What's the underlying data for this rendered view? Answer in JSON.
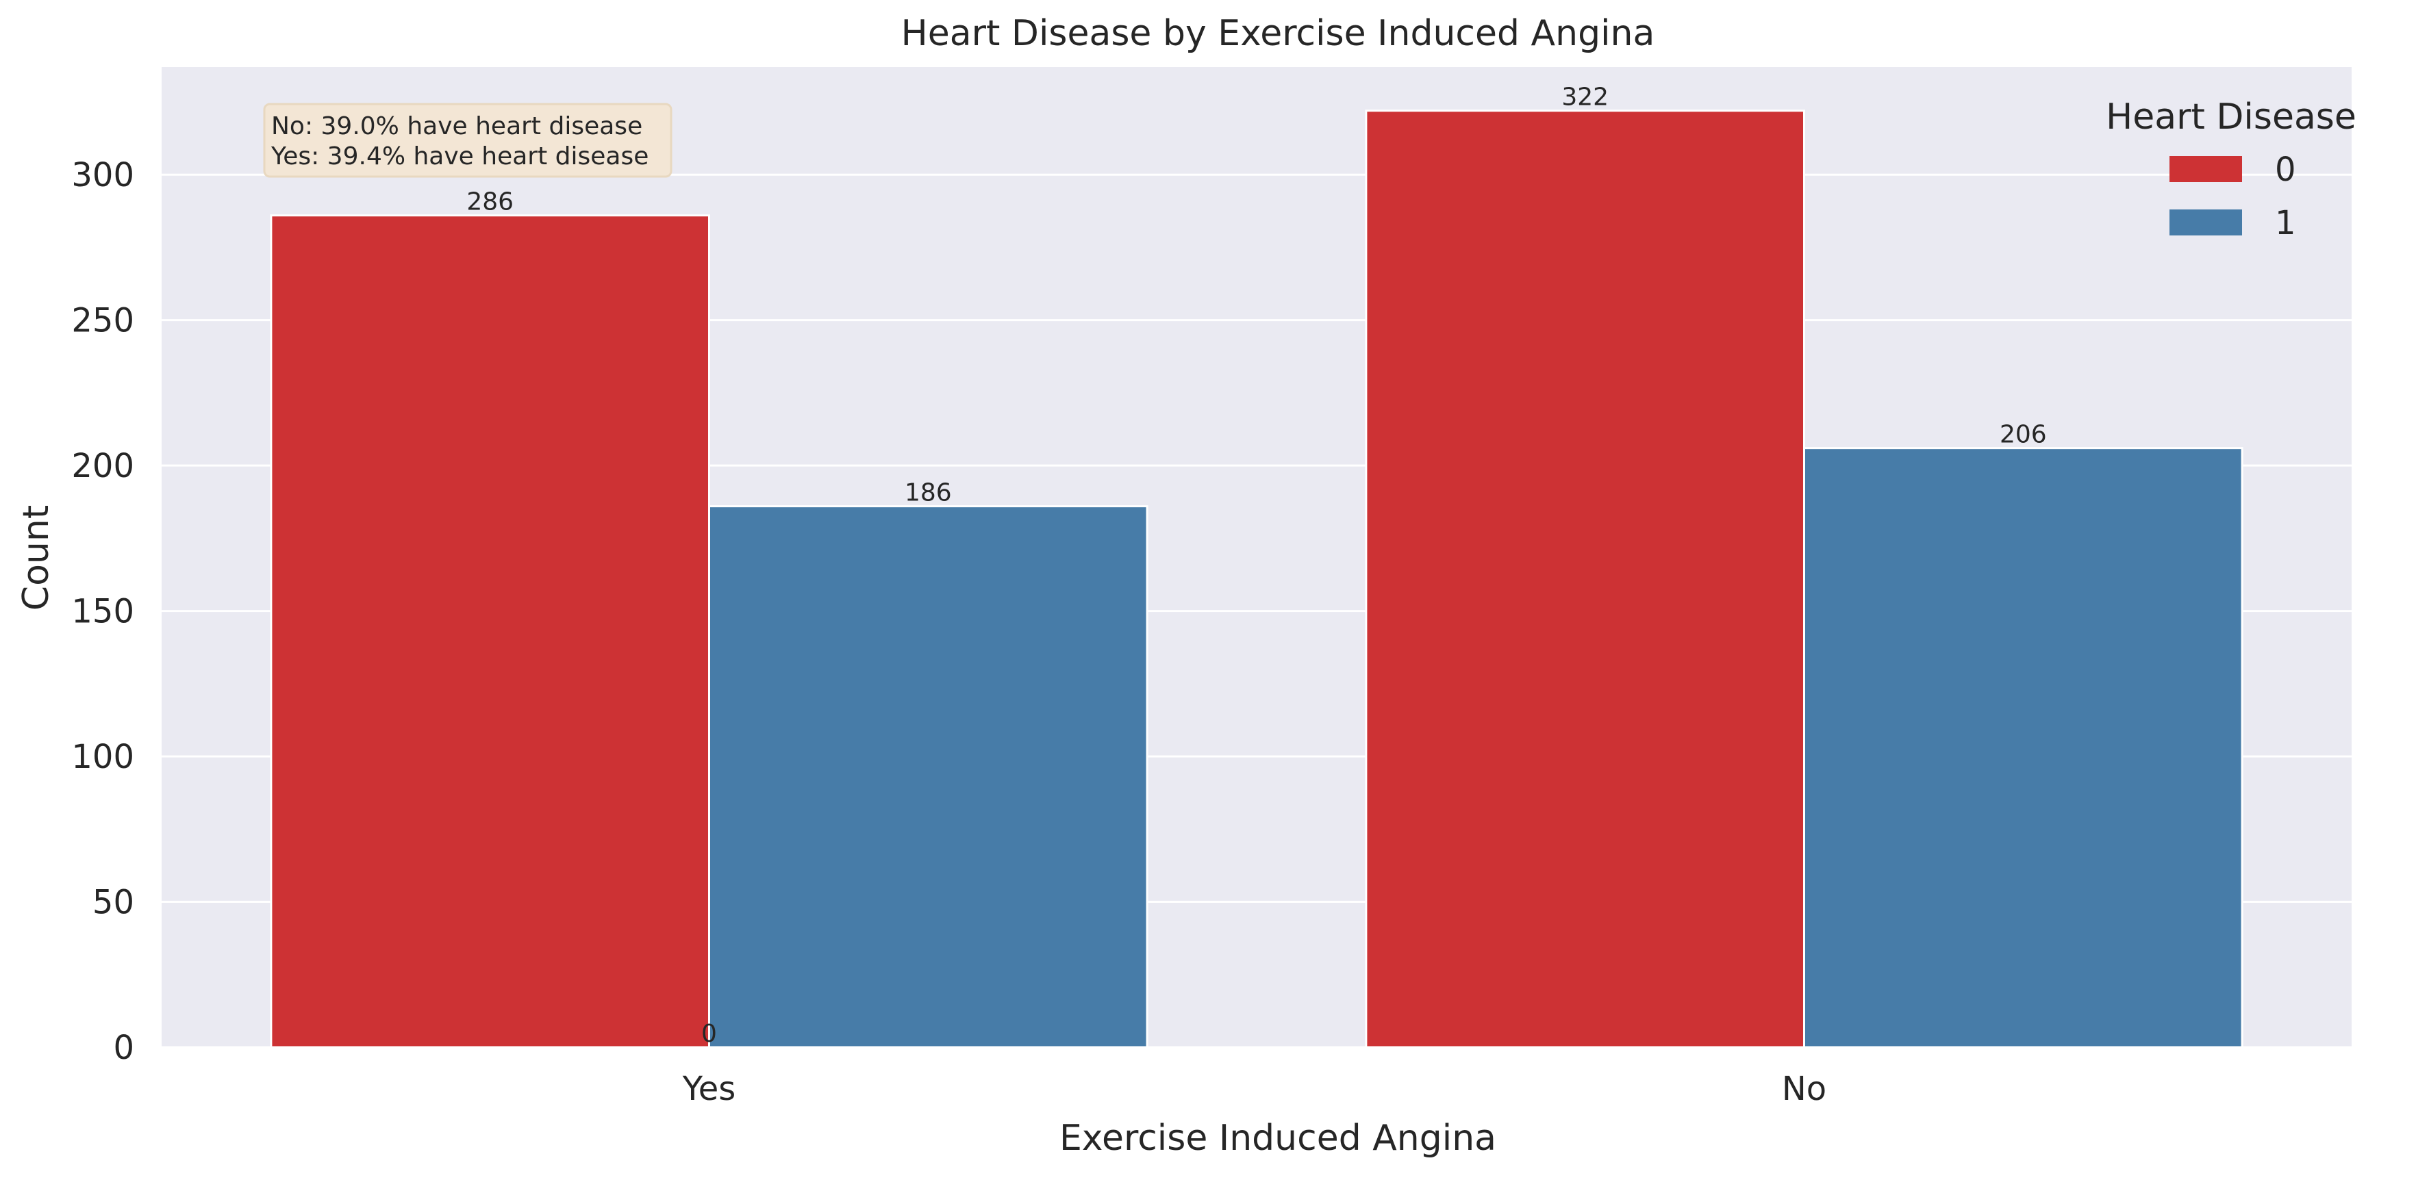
{
  "chart_data": {
    "type": "bar",
    "title": "Heart Disease by Exercise Induced Angina",
    "xlabel": "Exercise Induced Angina",
    "ylabel": "Count",
    "categories": [
      "Yes",
      "No"
    ],
    "series": [
      {
        "name": "0",
        "values": [
          286,
          322
        ],
        "color": "#cd3234"
      },
      {
        "name": "1",
        "values": [
          186,
          206
        ],
        "color": "#477ca8"
      }
    ],
    "ylim": [
      0,
      337
    ],
    "yticks": [
      0,
      50,
      100,
      150,
      200,
      250,
      300
    ],
    "grid": true,
    "legend": {
      "title": "Heart Disease",
      "placement": "top-right"
    },
    "extra_labels": [
      "0"
    ],
    "annotation": {
      "lines": [
        "No: 39.0% have heart disease",
        "Yes: 39.4% have heart disease"
      ],
      "placement": "top-left"
    },
    "colors": {
      "background": "#eaeaf2",
      "grid": "#ffffff",
      "annotation_box": "#f3e6d5"
    }
  }
}
